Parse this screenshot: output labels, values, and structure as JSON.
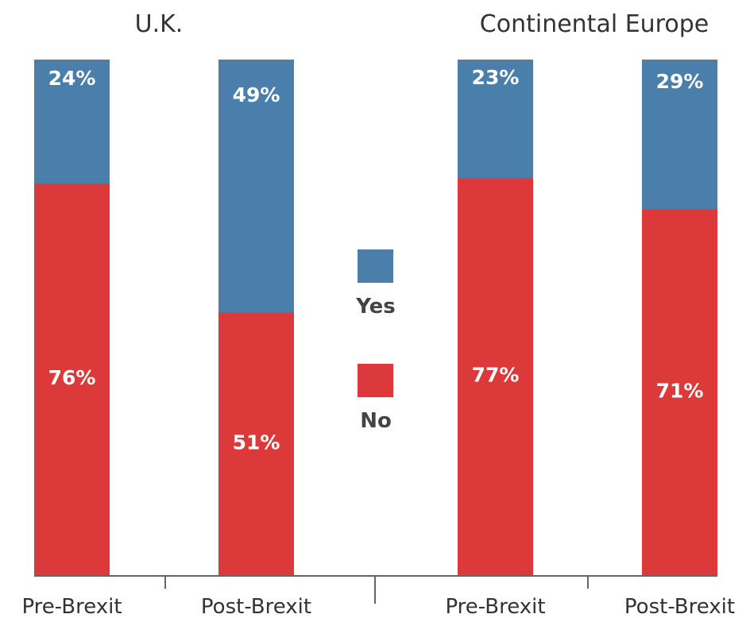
{
  "chart_data": {
    "type": "bar",
    "stacked": true,
    "percent_stacked": true,
    "panels": [
      {
        "title": "U.K.",
        "categories": [
          "Pre-Brexit",
          "Post-Brexit"
        ],
        "series": [
          {
            "name": "Yes",
            "values": [
              24,
              49
            ],
            "labels": [
              "24%",
              "49%"
            ]
          },
          {
            "name": "No",
            "values": [
              76,
              51
            ],
            "labels": [
              "76%",
              "51%"
            ]
          }
        ]
      },
      {
        "title": "Continental Europe",
        "categories": [
          "Pre-Brexit",
          "Post-Brexit"
        ],
        "series": [
          {
            "name": "Yes",
            "values": [
              23,
              29
            ],
            "labels": [
              "23%",
              "29%"
            ]
          },
          {
            "name": "No",
            "values": [
              77,
              71
            ],
            "labels": [
              "77%",
              "71%"
            ]
          }
        ]
      }
    ],
    "ylim": [
      0,
      100
    ],
    "grid": false,
    "legend": {
      "placement": "center",
      "entries": [
        {
          "name": "Yes",
          "label": "Yes"
        },
        {
          "name": "No",
          "label": "No"
        }
      ]
    },
    "colors": {
      "Yes": "#4a7fab",
      "No": "#dc3a3a"
    }
  }
}
